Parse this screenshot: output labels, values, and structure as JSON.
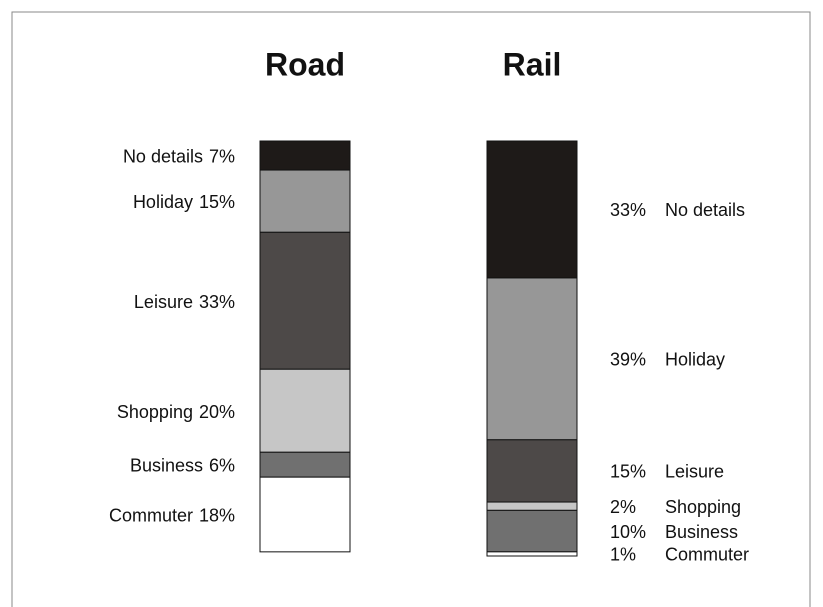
{
  "chart_data": {
    "type": "stacked-column",
    "categories": [
      "Road",
      "Rail"
    ],
    "series": [
      {
        "name": "No details",
        "color": "#1e1a18",
        "values": [
          7,
          33
        ],
        "value_labels": [
          "7%",
          "33%"
        ]
      },
      {
        "name": "Holiday",
        "color": "#979797",
        "values": [
          15,
          39
        ],
        "value_labels": [
          "15%",
          "39%"
        ]
      },
      {
        "name": "Leisure",
        "color": "#4d4948",
        "values": [
          33,
          15
        ],
        "value_labels": [
          "33%",
          "15%"
        ]
      },
      {
        "name": "Shopping",
        "color": "#c6c6c6",
        "values": [
          20,
          2
        ],
        "value_labels": [
          "20%",
          "2%"
        ]
      },
      {
        "name": "Business",
        "color": "#707070",
        "values": [
          6,
          10
        ],
        "value_labels": [
          "6%",
          "10%"
        ]
      },
      {
        "name": "Commuter",
        "color": "#ffffff",
        "values": [
          18,
          1
        ],
        "value_labels": [
          "18%",
          "1%"
        ]
      }
    ]
  }
}
